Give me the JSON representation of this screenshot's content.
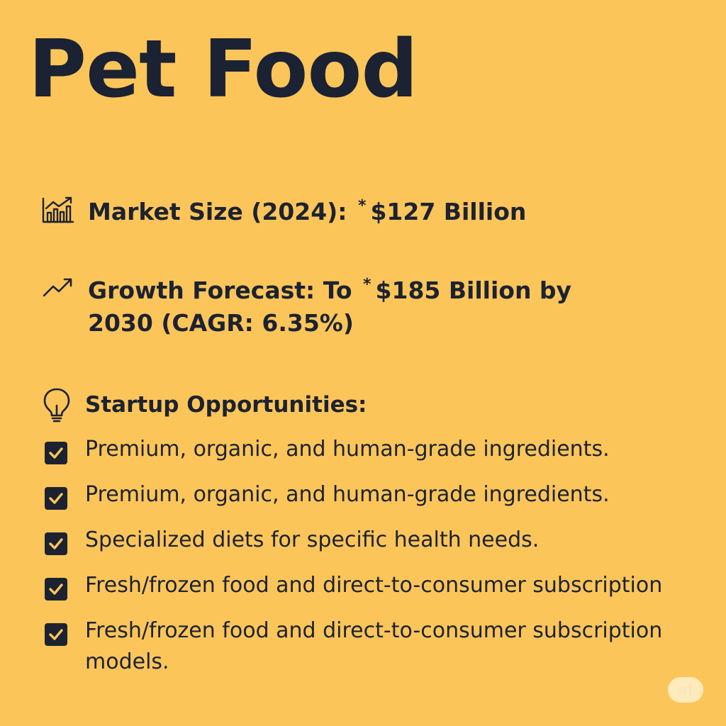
{
  "title": "Pet Food",
  "market": {
    "icon": "bar-chart-growth-icon",
    "label": "Market Size (2024): ",
    "mark": "*",
    "value": "$127 Billion"
  },
  "growth": {
    "icon": "trend-up-icon",
    "label": "Growth Forecast: To ",
    "mark": "*",
    "value": "$185 Billion by",
    "continuation": "2030 (CAGR: 6.35%)"
  },
  "opportunities": {
    "icon": "lightbulb-icon",
    "title": "Startup Opportunities:",
    "items": [
      "Premium, organic, and human-grade ingredients.",
      "Premium, organic, and human-grade ingredients.",
      "Specialized diets for specific health needs.",
      "Fresh/frozen food and direct-to-consumer subscription",
      "Fresh/frozen food and direct-to-consumer subscription models."
    ]
  },
  "badge": "ai",
  "colors": {
    "background": "#fcc55a",
    "text": "#1c2230",
    "checkbox": "#1c2230"
  }
}
